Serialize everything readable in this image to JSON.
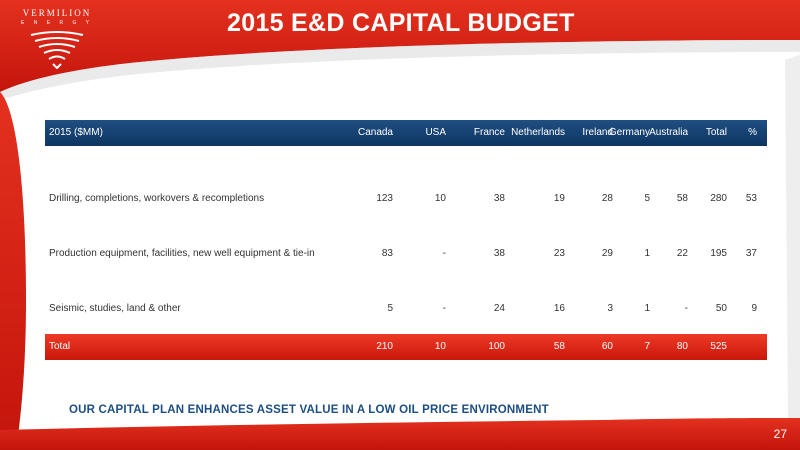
{
  "brand": {
    "name": "VERMILION",
    "sub": "E N E R G Y"
  },
  "title": "2015 E&D CAPITAL BUDGET",
  "table": {
    "headers": [
      "2015 ($MM)",
      "Canada",
      "USA",
      "France",
      "Netherlands",
      "Ireland",
      "Germany",
      "Australia",
      "Total",
      "%"
    ],
    "rows": [
      [
        "Drilling, completions, workovers & recompletions",
        "123",
        "10",
        "38",
        "19",
        "28",
        "5",
        "58",
        "280",
        "53"
      ],
      [
        "Production equipment, facilities, new well equipment & tie-in",
        "83",
        "-",
        "38",
        "23",
        "29",
        "1",
        "22",
        "195",
        "37"
      ],
      [
        "Seismic, studies, land & other",
        "5",
        "-",
        "24",
        "16",
        "3",
        "1",
        "-",
        "50",
        "9"
      ]
    ],
    "total": [
      "Total",
      "210",
      "10",
      "100",
      "58",
      "60",
      "7",
      "80",
      "525",
      ""
    ]
  },
  "tagline": "OUR CAPITAL PLAN ENHANCES ASSET VALUE IN A LOW OIL PRICE ENVIRONMENT",
  "page_number": "27",
  "colors": {
    "brand_red": "#d9251b",
    "navy": "#0d3461",
    "tagline_blue": "#1d4e82"
  }
}
